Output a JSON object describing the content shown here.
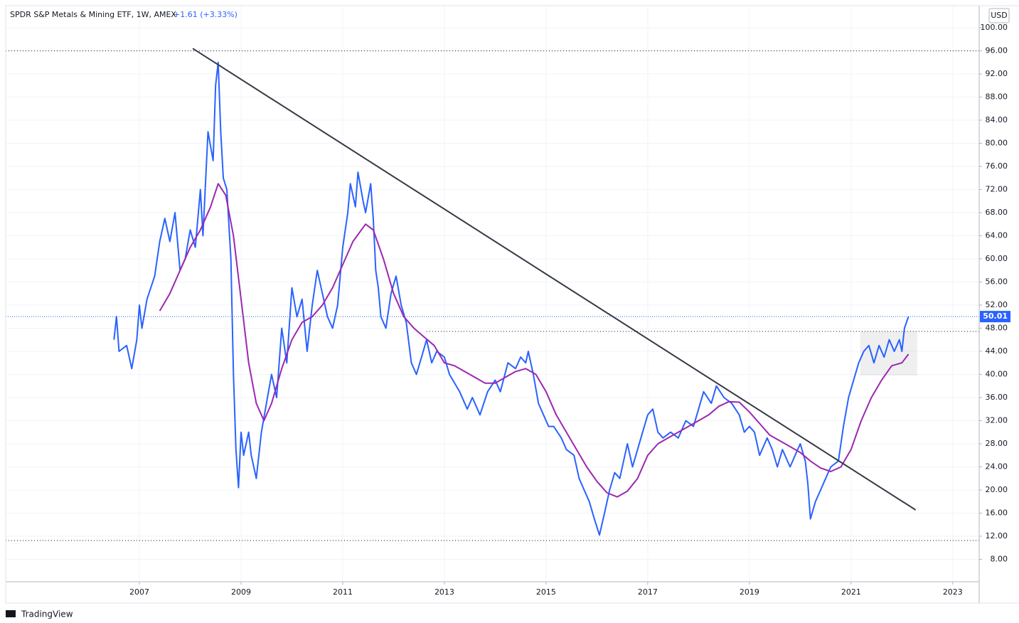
{
  "chart_data": {
    "type": "line",
    "title": "SPDR S&P Metals & Mining ETF, 1W, AMEX",
    "change": "+1.61 (+3.33%)",
    "currency": "USD",
    "branding": "TradingView",
    "xlim": [
      2004.37,
      2023.52
    ],
    "ylim": [
      4.12,
      101.35
    ],
    "xticks": [
      2007,
      2009,
      2011,
      2013,
      2015,
      2017,
      2019,
      2021,
      2023
    ],
    "yticks": [
      {
        "value": 8,
        "label": "8.00"
      },
      {
        "value": 12,
        "label": "12.00"
      },
      {
        "value": 16,
        "label": "16.00"
      },
      {
        "value": 20,
        "label": "20.00"
      },
      {
        "value": 24,
        "label": "24.00"
      },
      {
        "value": 28,
        "label": "28.00"
      },
      {
        "value": 32,
        "label": "32.00"
      },
      {
        "value": 36,
        "label": "36.00"
      },
      {
        "value": 40,
        "label": "40.00"
      },
      {
        "value": 44,
        "label": "44.00"
      },
      {
        "value": 48,
        "label": "48.00"
      },
      {
        "value": 52,
        "label": "52.00"
      },
      {
        "value": 56,
        "label": "56.00"
      },
      {
        "value": 60,
        "label": "60.00"
      },
      {
        "value": 64,
        "label": "64.00"
      },
      {
        "value": 68,
        "label": "68.00"
      },
      {
        "value": 72,
        "label": "72.00"
      },
      {
        "value": 76,
        "label": "76.00"
      },
      {
        "value": 80,
        "label": "80.00"
      },
      {
        "value": 84,
        "label": "84.00"
      },
      {
        "value": 88,
        "label": "88.00"
      },
      {
        "value": 92,
        "label": "92.00"
      },
      {
        "value": 96,
        "label": "96.00"
      },
      {
        "value": 100,
        "label": "100.00"
      }
    ],
    "grid": true,
    "series": [
      {
        "color": "#2962ff",
        "x": [
          2006.5,
          2006.55,
          2006.6,
          2006.75,
          2006.85,
          2006.95,
          2007.0,
          2007.05,
          2007.15,
          2007.3,
          2007.4,
          2007.5,
          2007.6,
          2007.7,
          2007.8,
          2007.9,
          2008.0,
          2008.1,
          2008.2,
          2008.25,
          2008.35,
          2008.45,
          2008.5,
          2008.55,
          2008.6,
          2008.65,
          2008.72,
          2008.8,
          2008.85,
          2008.9,
          2008.95,
          2009.0,
          2009.05,
          2009.15,
          2009.2,
          2009.3,
          2009.4,
          2009.5,
          2009.6,
          2009.7,
          2009.8,
          2009.9,
          2010.0,
          2010.1,
          2010.2,
          2010.3,
          2010.4,
          2010.5,
          2010.6,
          2010.7,
          2010.8,
          2010.9,
          2011.0,
          2011.1,
          2011.15,
          2011.25,
          2011.3,
          2011.4,
          2011.45,
          2011.55,
          2011.6,
          2011.65,
          2011.7,
          2011.75,
          2011.85,
          2011.95,
          2012.05,
          2012.15,
          2012.25,
          2012.35,
          2012.45,
          2012.55,
          2012.65,
          2012.75,
          2012.85,
          2013.0,
          2013.1,
          2013.3,
          2013.45,
          2013.55,
          2013.7,
          2013.85,
          2014.0,
          2014.1,
          2014.25,
          2014.4,
          2014.5,
          2014.6,
          2014.65,
          2014.75,
          2014.85,
          2014.95,
          2015.05,
          2015.15,
          2015.3,
          2015.4,
          2015.55,
          2015.65,
          2015.75,
          2015.85,
          2015.95,
          2016.05,
          2016.15,
          2016.25,
          2016.35,
          2016.45,
          2016.6,
          2016.7,
          2016.8,
          2016.9,
          2017.0,
          2017.1,
          2017.2,
          2017.3,
          2017.45,
          2017.6,
          2017.75,
          2017.9,
          2018.0,
          2018.1,
          2018.25,
          2018.35,
          2018.5,
          2018.65,
          2018.8,
          2018.9,
          2019.0,
          2019.1,
          2019.2,
          2019.35,
          2019.45,
          2019.55,
          2019.65,
          2019.8,
          2019.9,
          2020.0,
          2020.1,
          2020.15,
          2020.2,
          2020.3,
          2020.4,
          2020.5,
          2020.6,
          2020.75,
          2020.85,
          2020.95,
          2021.05,
          2021.15,
          2021.25,
          2021.35,
          2021.45,
          2021.55,
          2021.65,
          2021.75,
          2021.85,
          2021.95,
          2022.0,
          2022.05,
          2022.13
        ],
        "values": [
          46,
          50,
          44,
          45,
          41,
          46,
          52,
          48,
          53,
          57,
          63,
          67,
          63,
          68,
          58,
          60,
          65,
          62,
          72,
          64,
          82,
          77,
          90,
          94,
          82,
          74,
          72,
          60,
          40,
          27,
          20.4,
          30,
          26,
          30,
          26,
          22,
          30,
          35,
          40,
          36,
          48,
          42,
          55,
          50,
          53,
          44,
          52,
          58,
          54,
          50,
          48,
          52,
          62,
          68,
          73,
          69,
          75,
          70,
          68,
          73,
          67,
          58,
          55,
          50,
          48,
          54,
          57,
          52,
          49,
          42,
          40,
          43,
          46,
          42,
          44,
          43,
          40,
          37,
          34,
          36,
          33,
          37,
          39,
          37,
          42,
          41,
          43,
          42,
          44,
          40,
          35,
          33,
          31,
          31,
          29,
          27,
          26,
          22,
          20,
          18,
          15,
          12.2,
          16,
          20,
          23,
          22,
          28,
          24,
          27,
          30,
          33,
          34,
          30,
          29,
          30,
          29,
          32,
          31,
          34,
          37,
          35,
          38,
          36,
          35,
          33,
          30,
          31,
          30,
          26,
          29,
          27,
          24,
          27,
          24,
          26,
          28,
          25,
          21,
          15,
          18,
          20,
          22,
          24,
          25,
          31,
          36,
          39,
          42,
          44,
          45,
          42,
          45,
          43,
          46,
          44,
          46,
          44,
          48,
          50.01
        ]
      },
      {
        "color": "#9c27b0",
        "x": [
          2007.4,
          2007.6,
          2007.8,
          2008.0,
          2008.2,
          2008.4,
          2008.55,
          2008.7,
          2008.85,
          2009.0,
          2009.15,
          2009.3,
          2009.45,
          2009.6,
          2009.8,
          2010.0,
          2010.2,
          2010.4,
          2010.6,
          2010.8,
          2011.0,
          2011.2,
          2011.45,
          2011.6,
          2011.8,
          2012.0,
          2012.2,
          2012.4,
          2012.6,
          2012.8,
          2013.0,
          2013.2,
          2013.4,
          2013.6,
          2013.8,
          2014.0,
          2014.2,
          2014.4,
          2014.6,
          2014.8,
          2015.0,
          2015.2,
          2015.4,
          2015.6,
          2015.8,
          2016.0,
          2016.2,
          2016.4,
          2016.6,
          2016.8,
          2017.0,
          2017.2,
          2017.4,
          2017.6,
          2017.8,
          2018.0,
          2018.2,
          2018.4,
          2018.6,
          2018.8,
          2019.0,
          2019.2,
          2019.4,
          2019.6,
          2019.8,
          2020.0,
          2020.2,
          2020.4,
          2020.6,
          2020.8,
          2021.0,
          2021.2,
          2021.4,
          2021.6,
          2021.8,
          2022.0,
          2022.13
        ],
        "values": [
          51,
          54,
          58,
          62,
          65,
          69,
          73,
          71,
          64,
          53,
          42,
          35,
          32,
          35,
          41,
          46,
          49,
          50,
          52,
          55,
          59,
          63,
          66,
          65,
          60,
          54,
          50,
          48,
          46.5,
          45,
          42,
          41.5,
          40.5,
          39.5,
          38.5,
          38.5,
          39.5,
          40.5,
          41,
          40,
          37,
          33,
          30,
          27,
          24,
          21.5,
          19.5,
          18.8,
          19.8,
          22,
          26,
          28,
          29,
          30,
          31,
          32,
          33,
          34.5,
          35.3,
          35.2,
          33.5,
          31.5,
          29.5,
          28.5,
          27.5,
          26.5,
          25,
          23.8,
          23.2,
          24,
          27,
          32,
          36,
          39,
          41.5,
          42,
          43.5
        ]
      }
    ],
    "trendline": {
      "x": [
        2008.05,
        2022.27
      ],
      "values": [
        96.4,
        16.55
      ]
    },
    "hlines": [
      {
        "value": 96
      },
      {
        "value": 11.26
      },
      {
        "value": 47.45,
        "x_start": 2012.65
      }
    ],
    "box": {
      "x": [
        2021.18,
        2022.3
      ],
      "values": [
        39.8,
        47.5
      ]
    }
  }
}
